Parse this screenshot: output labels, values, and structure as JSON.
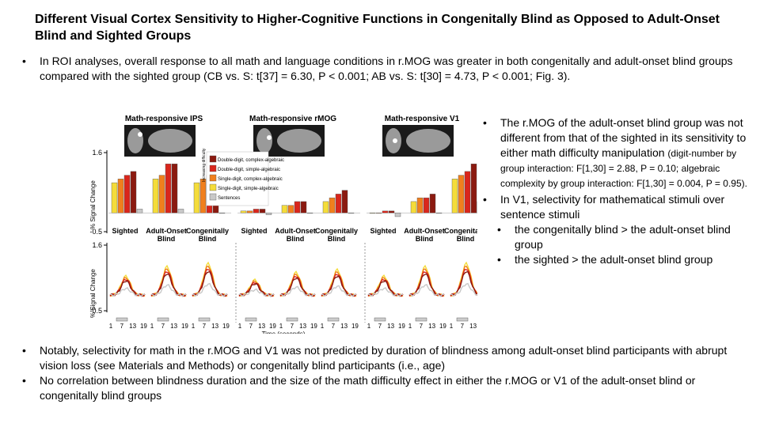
{
  "title": "Different Visual Cortex Sensitivity to Higher-Cognitive Functions in Congenitally Blind as Opposed to Adult-Onset Blind and Sighted Groups",
  "bullets_top": [
    "In ROI analyses, overall response to all math and language conditions in r.MOG was greater in both congenitally and adult-onset blind groups compared with the sighted group (CB vs. S: t[37] = 6.30, P < 0.001; AB vs. S: t[30] = 4.73, P < 0.001; Fig. 3)."
  ],
  "side_bullets": [
    {
      "text": "The r.MOG of the adult-onset blind group was not different from that of the sighted in its sensitivity to either math difficulty manipulation",
      "note": "(digit-number by group interaction: F[1,30] = 2.88, P = 0.10; algebraic complexity by group interaction: F[1,30] = 0.004, P = 0.95)."
    },
    {
      "text": "In V1, selectivity for mathematical stimuli over sentence stimuli",
      "sub": [
        "the congenitally blind > the adult-onset blind group",
        "the sighted > the adult-onset blind group"
      ]
    }
  ],
  "bullets_bottom": [
    "Notably, selectivity for math in the r.MOG and V1 was not predicted by duration of blindness among adult-onset blind participants with abrupt vision loss (see Materials and Methods) or congenitally blind participants (i.e., age)",
    "No correlation between blindness duration and the size of the math difficulty effect in either the r.MOG or V1 of the adult-onset blind or congenitally blind groups"
  ],
  "figure": {
    "panels": [
      "Math-responsive IPS",
      "Math-responsive rMOG",
      "Math-responsive V1"
    ],
    "groups": [
      "Sighted",
      "Adult-Onset Blind",
      "Congenitally Blind"
    ],
    "y_label": "% Signal Change",
    "ylim": [
      -0.5,
      1.6
    ],
    "yticks": [
      1.6,
      -0.5
    ],
    "difficulty_label": "Increasing difficulty",
    "conditions": [
      {
        "name": "Double-digit, complex-algebraic",
        "color": "#8b1a10"
      },
      {
        "name": "Double-digit, simple-algebraic",
        "color": "#d9261c"
      },
      {
        "name": "Single-digit, complex-algebraic",
        "color": "#f07f1d"
      },
      {
        "name": "Single-digit, simple-algebraic",
        "color": "#f4dc3a"
      },
      {
        "name": "Sentences",
        "color": "#c8c8c8"
      }
    ],
    "bar_values": [
      [
        [
          1.1,
          1.0,
          0.9,
          0.8,
          0.1
        ],
        [
          1.3,
          1.3,
          1.0,
          0.9,
          0.1
        ],
        [
          1.1,
          1.0,
          0.9,
          0.8,
          0.0
        ]
      ],
      [
        [
          0.1,
          0.1,
          0.05,
          0.05,
          -0.05
        ],
        [
          0.3,
          0.3,
          0.2,
          0.2,
          0.0
        ],
        [
          0.6,
          0.5,
          0.4,
          0.3,
          0.0
        ]
      ],
      [
        [
          0.05,
          0.05,
          0.0,
          0.0,
          -0.1
        ],
        [
          0.5,
          0.4,
          0.4,
          0.3,
          0.0
        ],
        [
          1.3,
          1.1,
          1.0,
          0.9,
          0.3
        ]
      ]
    ],
    "time_ticks": [
      1,
      7,
      13,
      19
    ],
    "x_label": "Time (seconds)"
  }
}
